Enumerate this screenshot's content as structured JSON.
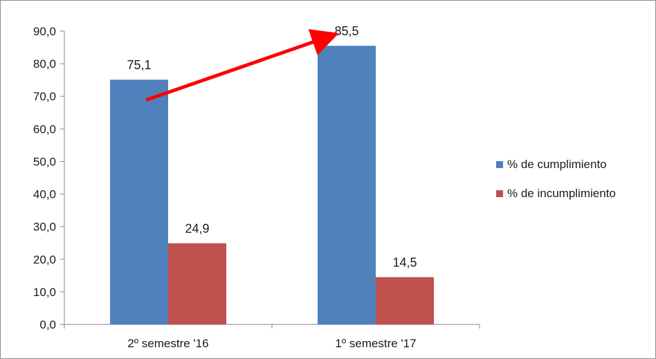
{
  "chart_data": {
    "type": "bar",
    "categories": [
      "2º semestre '16",
      "1º semestre '17"
    ],
    "series": [
      {
        "name": "% de cumplimiento",
        "values": [
          75.1,
          85.5
        ],
        "labels": [
          "75,1",
          "85,5"
        ],
        "color": "#4f81bd"
      },
      {
        "name": "% de incumplimiento",
        "values": [
          24.9,
          14.5
        ],
        "labels": [
          "24,9",
          "14,5"
        ],
        "color": "#c0504d"
      }
    ],
    "y_ticks": [
      "0,0",
      "10,0",
      "20,0",
      "30,0",
      "40,0",
      "50,0",
      "60,0",
      "70,0",
      "80,0",
      "90,0"
    ],
    "ylim": [
      0,
      90
    ],
    "grid": false,
    "legend_position": "right",
    "annotation": {
      "type": "arrow",
      "color": "#ff0000",
      "from": {
        "category": 0,
        "y": 69
      },
      "to": {
        "category": 1,
        "y": 88
      }
    }
  }
}
